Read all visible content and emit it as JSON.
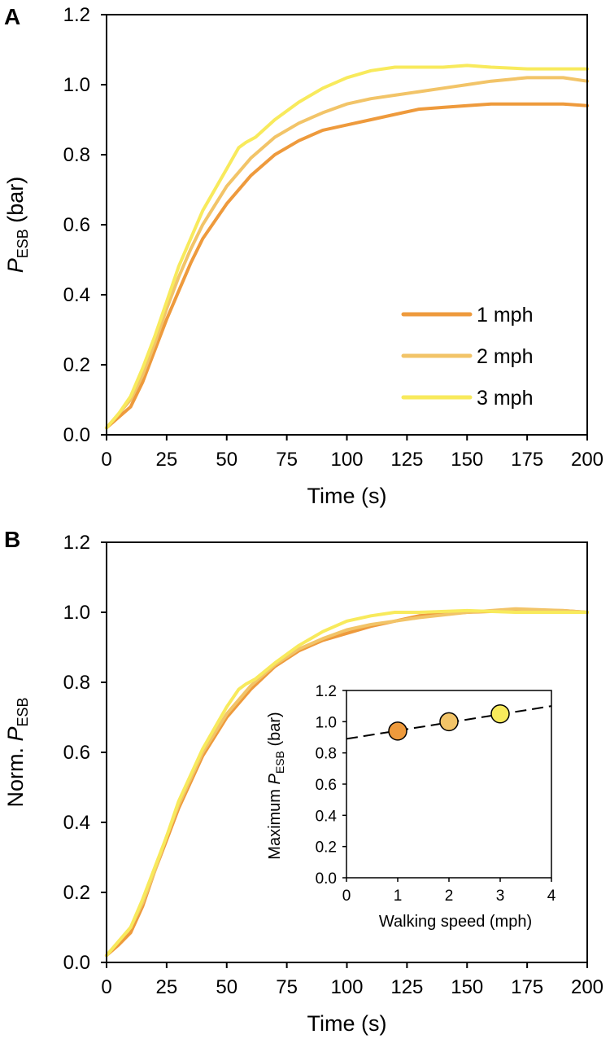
{
  "chart_data": [
    {
      "panel_label": "A",
      "type": "line",
      "xlabel": "Time (s)",
      "ylabel_main": "P",
      "ylabel_sub": "ESB",
      "ylabel_tail": " (bar)",
      "xlim": [
        0,
        200
      ],
      "ylim": [
        0,
        1.2
      ],
      "xticks": [
        0,
        25,
        50,
        75,
        100,
        125,
        150,
        175,
        200
      ],
      "yticks": [
        "0.0",
        "0.2",
        "0.4",
        "0.6",
        "0.8",
        "1.0",
        "1.2"
      ],
      "legend_position": "lower-right",
      "series": [
        {
          "name": "1 mph",
          "color": "#ee9a3c",
          "x": [
            0,
            5,
            10,
            15,
            20,
            25,
            30,
            35,
            40,
            50,
            60,
            70,
            80,
            90,
            100,
            110,
            120,
            130,
            140,
            150,
            160,
            175,
            190,
            200
          ],
          "y": [
            0.02,
            0.05,
            0.08,
            0.15,
            0.24,
            0.33,
            0.41,
            0.49,
            0.56,
            0.66,
            0.74,
            0.8,
            0.84,
            0.87,
            0.885,
            0.9,
            0.915,
            0.93,
            0.935,
            0.94,
            0.945,
            0.945,
            0.945,
            0.94
          ]
        },
        {
          "name": "2 mph",
          "color": "#f2c468",
          "x": [
            0,
            5,
            10,
            15,
            20,
            25,
            30,
            35,
            40,
            50,
            60,
            70,
            80,
            90,
            100,
            110,
            120,
            130,
            140,
            150,
            160,
            175,
            190,
            200
          ],
          "y": [
            0.02,
            0.06,
            0.1,
            0.17,
            0.26,
            0.36,
            0.45,
            0.53,
            0.6,
            0.71,
            0.79,
            0.85,
            0.89,
            0.92,
            0.945,
            0.96,
            0.97,
            0.98,
            0.99,
            1.0,
            1.01,
            1.02,
            1.02,
            1.01
          ]
        },
        {
          "name": "3 mph",
          "color": "#f8ea5c",
          "x": [
            0,
            5,
            10,
            15,
            20,
            25,
            30,
            35,
            40,
            50,
            55,
            58,
            62,
            70,
            80,
            90,
            100,
            110,
            120,
            130,
            140,
            150,
            160,
            175,
            190,
            200
          ],
          "y": [
            0.02,
            0.06,
            0.11,
            0.19,
            0.28,
            0.38,
            0.48,
            0.56,
            0.64,
            0.76,
            0.82,
            0.835,
            0.85,
            0.9,
            0.95,
            0.99,
            1.02,
            1.04,
            1.05,
            1.05,
            1.05,
            1.055,
            1.05,
            1.045,
            1.045,
            1.045
          ]
        }
      ]
    },
    {
      "panel_label": "B",
      "type": "line",
      "xlabel": "Time (s)",
      "ylabel_main": "Norm. P",
      "ylabel_sub": "ESB",
      "ylabel_tail": "",
      "xlim": [
        0,
        200
      ],
      "ylim": [
        0,
        1.2
      ],
      "xticks": [
        0,
        25,
        50,
        75,
        100,
        125,
        150,
        175,
        200
      ],
      "yticks": [
        "0.0",
        "0.2",
        "0.4",
        "0.6",
        "0.8",
        "1.0",
        "1.2"
      ],
      "series": [
        {
          "name": "1 mph",
          "color": "#ee9a3c",
          "x": [
            0,
            5,
            10,
            15,
            20,
            25,
            30,
            40,
            50,
            60,
            70,
            80,
            90,
            100,
            110,
            120,
            130,
            150,
            170,
            190,
            200
          ],
          "y": [
            0.02,
            0.05,
            0.085,
            0.16,
            0.26,
            0.35,
            0.44,
            0.59,
            0.7,
            0.78,
            0.845,
            0.89,
            0.92,
            0.94,
            0.96,
            0.975,
            0.99,
            1.0,
            1.005,
            1.005,
            1.0
          ]
        },
        {
          "name": "2 mph",
          "color": "#f2c468",
          "x": [
            0,
            5,
            10,
            15,
            20,
            25,
            30,
            40,
            50,
            60,
            70,
            80,
            90,
            100,
            110,
            120,
            130,
            150,
            170,
            190,
            200
          ],
          "y": [
            0.02,
            0.06,
            0.1,
            0.17,
            0.26,
            0.36,
            0.45,
            0.6,
            0.71,
            0.79,
            0.85,
            0.895,
            0.925,
            0.95,
            0.965,
            0.975,
            0.985,
            1.0,
            1.01,
            1.005,
            1.0
          ]
        },
        {
          "name": "3 mph",
          "color": "#f8ea5c",
          "x": [
            0,
            5,
            10,
            15,
            20,
            25,
            30,
            40,
            50,
            55,
            58,
            62,
            70,
            80,
            90,
            100,
            110,
            120,
            130,
            150,
            170,
            190,
            200
          ],
          "y": [
            0.02,
            0.06,
            0.1,
            0.18,
            0.27,
            0.36,
            0.46,
            0.61,
            0.73,
            0.78,
            0.795,
            0.81,
            0.855,
            0.905,
            0.945,
            0.975,
            0.99,
            1.0,
            1.0,
            1.005,
            1.0,
            1.0,
            1.0
          ]
        }
      ],
      "inset": {
        "type": "scatter",
        "xlabel": "Walking speed (mph)",
        "ylabel_main": "Maximum P",
        "ylabel_sub": "ESB",
        "ylabel_tail": " (bar)",
        "xlim": [
          0,
          4
        ],
        "ylim": [
          0,
          1.2
        ],
        "xticks": [
          0,
          1,
          2,
          3,
          4
        ],
        "yticks": [
          "0.0",
          "0.2",
          "0.4",
          "0.6",
          "0.8",
          "1.0",
          "1.2"
        ],
        "points": [
          {
            "x": 1,
            "y": 0.94,
            "color": "#ee9a3c"
          },
          {
            "x": 2,
            "y": 1.0,
            "color": "#f2c468"
          },
          {
            "x": 3,
            "y": 1.05,
            "color": "#f8ea5c"
          }
        ],
        "fit_line": {
          "x": [
            0,
            4
          ],
          "y": [
            0.89,
            1.1
          ],
          "style": "dashed"
        }
      }
    }
  ]
}
